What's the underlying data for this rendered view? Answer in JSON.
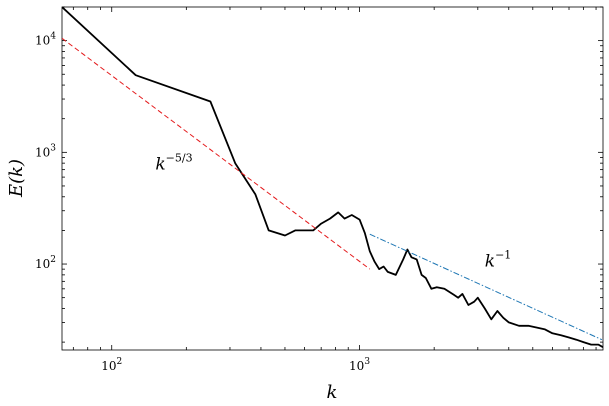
{
  "chart_data": {
    "type": "line",
    "title": "",
    "xlabel": "k",
    "ylabel": "E(k)",
    "xscale": "log",
    "yscale": "log",
    "xlim": [
      63,
      9600
    ],
    "ylim": [
      17,
      20000
    ],
    "grid": false,
    "x_ticks": [
      {
        "value": 100,
        "base": "10",
        "exp": "2"
      },
      {
        "value": 1000,
        "base": "10",
        "exp": "3"
      }
    ],
    "y_ticks": [
      {
        "value": 100,
        "base": "10",
        "exp": "2"
      },
      {
        "value": 1000,
        "base": "10",
        "exp": "3"
      },
      {
        "value": 10000,
        "base": "10",
        "exp": "4"
      }
    ],
    "series": [
      {
        "color": "#000000",
        "style": "solid",
        "x": [
          63,
          125,
          250,
          315,
          380,
          430,
          500,
          550,
          650,
          700,
          760,
          820,
          870,
          930,
          1000,
          1050,
          1100,
          1150,
          1200,
          1250,
          1300,
          1400,
          1500,
          1560,
          1620,
          1700,
          1780,
          1850,
          1950,
          2050,
          2200,
          2400,
          2500,
          2600,
          2750,
          2900,
          3000,
          3200,
          3400,
          3600,
          3800,
          4000,
          4400,
          4800,
          5200,
          5600,
          6000,
          6500,
          7000,
          7500,
          8000,
          8600,
          9200,
          9600
        ],
        "y": [
          20000,
          4900,
          2850,
          800,
          420,
          200,
          180,
          200,
          200,
          230,
          255,
          290,
          255,
          275,
          250,
          190,
          130,
          105,
          90,
          95,
          85,
          80,
          110,
          135,
          115,
          110,
          80,
          75,
          60,
          62,
          60,
          53,
          50,
          54,
          43,
          46,
          50,
          40,
          32,
          38,
          33,
          30,
          28,
          28,
          27,
          26,
          24,
          23,
          22,
          21,
          20,
          19,
          19,
          18
        ]
      },
      {
        "color": "#e41a1c",
        "style": "dashed",
        "x": [
          63,
          1100
        ],
        "y": [
          10500,
          90
        ]
      },
      {
        "color": "#1f77b4",
        "style": "dashdot",
        "x": [
          1100,
          9500
        ],
        "y": [
          185,
          21
        ]
      }
    ],
    "annotations": [
      {
        "base": "k",
        "exp": "−5/3",
        "x": 150,
        "y": 700
      },
      {
        "base": "k",
        "exp": "−1",
        "x": 3200,
        "y": 95
      }
    ]
  }
}
